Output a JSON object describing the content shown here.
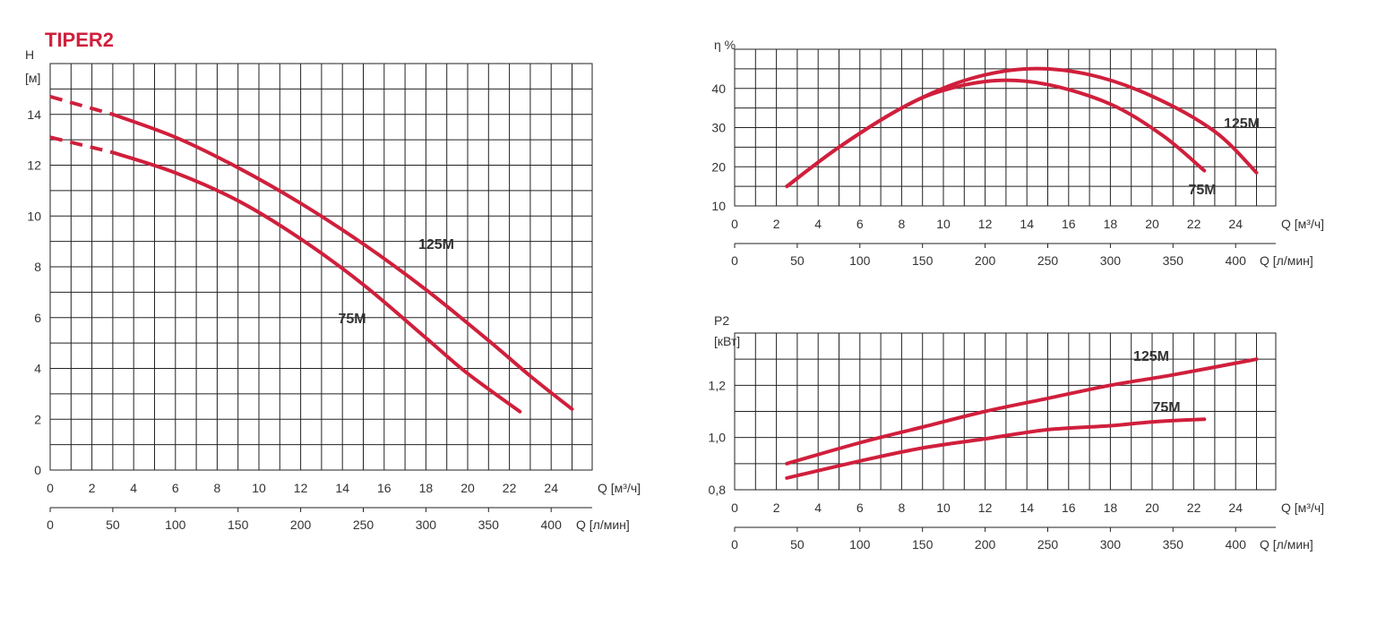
{
  "title": "TIPER2",
  "colors": {
    "curve": "#d01f3c",
    "title": "#d01f3c",
    "grid": "#222222",
    "text": "#333333"
  },
  "chart_data": [
    {
      "id": "head",
      "type": "line",
      "x_range": [
        0,
        26
      ],
      "ylim": [
        0,
        16
      ],
      "yticks": [
        0,
        2,
        4,
        6,
        8,
        10,
        12,
        14
      ],
      "ylabel_lines": [
        "H",
        "[м]"
      ],
      "xticks_m3h": [
        "0",
        "2",
        "4",
        "6",
        "8",
        "10",
        "12",
        "14",
        "16",
        "18",
        "20",
        "22",
        "24"
      ],
      "xlabel_m3h": "Q [м³/ч]",
      "xticks_lmin": [
        "0",
        "50",
        "100",
        "150",
        "200",
        "250",
        "300",
        "350",
        "400"
      ],
      "xlabel_lmin": "Q [л/мин]",
      "grid": true,
      "series": [
        {
          "name": "125M",
          "dashed": [
            [
              0,
              14.7
            ],
            [
              3,
              14.0
            ]
          ],
          "points": [
            [
              3,
              14.0
            ],
            [
              6,
              13.1
            ],
            [
              9,
              11.9
            ],
            [
              12,
              10.5
            ],
            [
              15,
              8.9
            ],
            [
              18,
              7.1
            ],
            [
              21,
              5.1
            ],
            [
              23,
              3.7
            ],
            [
              25,
              2.4
            ]
          ]
        },
        {
          "name": "75M",
          "dashed": [
            [
              0,
              13.1
            ],
            [
              3,
              12.5
            ]
          ],
          "points": [
            [
              3,
              12.5
            ],
            [
              6,
              11.7
            ],
            [
              9,
              10.6
            ],
            [
              12,
              9.1
            ],
            [
              15,
              7.3
            ],
            [
              18,
              5.2
            ],
            [
              20,
              3.8
            ],
            [
              22.5,
              2.3
            ]
          ]
        }
      ]
    },
    {
      "id": "efficiency",
      "type": "line",
      "x_range": [
        0,
        26
      ],
      "ylim": [
        10,
        50
      ],
      "yticks": [
        10,
        20,
        30,
        40
      ],
      "ylabel_lines": [
        "η %"
      ],
      "xticks_m3h": [
        "0",
        "2",
        "4",
        "6",
        "8",
        "10",
        "12",
        "14",
        "16",
        "18",
        "20",
        "22",
        "24"
      ],
      "xlabel_m3h": "Q [м³/ч]",
      "xticks_lmin": [
        "0",
        "50",
        "100",
        "150",
        "200",
        "250",
        "300",
        "350",
        "400"
      ],
      "xlabel_lmin": "Q [л/мин]",
      "grid": true,
      "series": [
        {
          "name": "125M",
          "points": [
            [
              2.5,
              15
            ],
            [
              5,
              25
            ],
            [
              8,
              35
            ],
            [
              11,
              42
            ],
            [
              14,
              45
            ],
            [
              17,
              43.5
            ],
            [
              20,
              38
            ],
            [
              23,
              29
            ],
            [
              25,
              18.5
            ]
          ]
        },
        {
          "name": "75M",
          "points": [
            [
              2.5,
              15
            ],
            [
              5,
              25
            ],
            [
              8,
              35
            ],
            [
              10,
              39.5
            ],
            [
              12.5,
              42
            ],
            [
              15,
              41
            ],
            [
              18,
              36
            ],
            [
              20.5,
              28
            ],
            [
              22.5,
              19
            ]
          ]
        }
      ]
    },
    {
      "id": "power",
      "type": "line",
      "x_range": [
        0,
        26
      ],
      "ylim": [
        0.8,
        1.4
      ],
      "yticks": [
        "0,8",
        "1,0",
        "1,2"
      ],
      "ylabel_lines": [
        "P2",
        "[кВт]"
      ],
      "xticks_m3h": [
        "0",
        "2",
        "4",
        "6",
        "8",
        "10",
        "12",
        "14",
        "16",
        "18",
        "20",
        "22",
        "24"
      ],
      "xlabel_m3h": "Q [м³/ч]",
      "xticks_lmin": [
        "0",
        "50",
        "100",
        "150",
        "200",
        "250",
        "300",
        "350",
        "400"
      ],
      "xlabel_lmin": "Q [л/мин]",
      "grid": true,
      "series": [
        {
          "name": "125M",
          "points": [
            [
              2.5,
              0.9
            ],
            [
              6,
              0.98
            ],
            [
              9,
              1.04
            ],
            [
              12,
              1.1
            ],
            [
              15,
              1.15
            ],
            [
              18,
              1.2
            ],
            [
              21,
              1.24
            ],
            [
              25,
              1.3
            ]
          ]
        },
        {
          "name": "75M",
          "points": [
            [
              2.5,
              0.845
            ],
            [
              6,
              0.91
            ],
            [
              9,
              0.96
            ],
            [
              12,
              0.995
            ],
            [
              15,
              1.03
            ],
            [
              18,
              1.045
            ],
            [
              20,
              1.06
            ],
            [
              22.5,
              1.07
            ]
          ]
        }
      ]
    }
  ]
}
